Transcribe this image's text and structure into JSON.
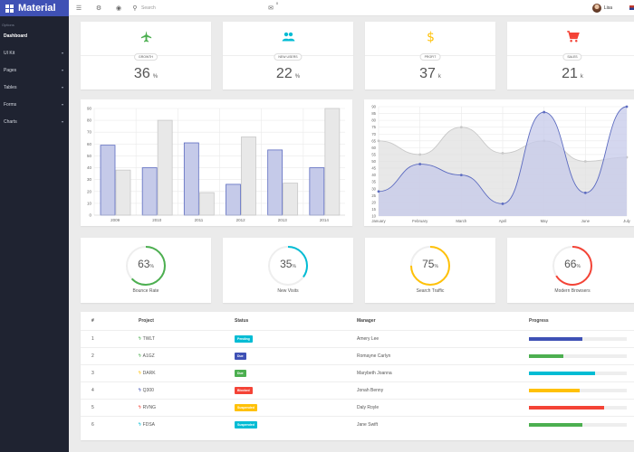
{
  "brand": {
    "title": "Material"
  },
  "sidebar": {
    "section": "Options",
    "items": [
      {
        "label": "Dashboard",
        "active": true,
        "chevron": false
      },
      {
        "label": "UI Kit",
        "chevron": true
      },
      {
        "label": "Pages",
        "chevron": true
      },
      {
        "label": "Tables",
        "chevron": true
      },
      {
        "label": "Forms",
        "chevron": true
      },
      {
        "label": "Charts",
        "chevron": true
      }
    ]
  },
  "topbar": {
    "search_placeholder": "Search",
    "mail_count": "0",
    "user_name": "Lisa"
  },
  "stats": [
    {
      "badge": "GROWTH",
      "value": "36",
      "unit": "%",
      "icon": "airplane-icon",
      "color": "#4caf50"
    },
    {
      "badge": "NEW USERS",
      "value": "22",
      "unit": "%",
      "icon": "users-icon",
      "color": "#00bcd4"
    },
    {
      "badge": "PROFIT",
      "value": "37",
      "unit": "k",
      "icon": "dollar-icon",
      "color": "#ffc107"
    },
    {
      "badge": "SALES",
      "value": "21",
      "unit": "k",
      "icon": "cart-icon",
      "color": "#f44336"
    }
  ],
  "chart_data": [
    {
      "type": "bar",
      "categories": [
        "2009",
        "2010",
        "2011",
        "2012",
        "2013",
        "2014"
      ],
      "series": [
        {
          "values": [
            59,
            40,
            61,
            26,
            55,
            40
          ],
          "color": "#c5cae9",
          "stroke": "#5c6bc0"
        },
        {
          "values": [
            38,
            80,
            19,
            66,
            27,
            90
          ],
          "color": "#e8e8e8",
          "stroke": "#c8c8c8"
        }
      ],
      "ylim": [
        0,
        90
      ],
      "yticks": [
        0,
        10,
        20,
        30,
        40,
        50,
        60,
        70,
        80,
        90
      ],
      "grid": true
    },
    {
      "type": "area",
      "categories": [
        "January",
        "February",
        "March",
        "April",
        "May",
        "June",
        "July"
      ],
      "series": [
        {
          "values": [
            65,
            55,
            75,
            56,
            65,
            50,
            53
          ],
          "color": "#e0e0e0",
          "stroke": "#c9c9c9"
        },
        {
          "values": [
            28,
            48,
            40,
            19,
            86,
            27,
            90
          ],
          "color": "#c5cae9",
          "stroke": "#5c6bc0"
        }
      ],
      "ylim": [
        10,
        90
      ],
      "yticks": [
        10,
        15,
        20,
        25,
        30,
        35,
        40,
        45,
        50,
        55,
        60,
        65,
        70,
        75,
        80,
        85,
        90
      ],
      "grid": true
    }
  ],
  "gauges": [
    {
      "value": "63",
      "fraction": 0.63,
      "label": "Bounce Rate",
      "color": "#4caf50"
    },
    {
      "value": "35",
      "fraction": 0.35,
      "label": "New Visits",
      "color": "#00bcd4"
    },
    {
      "value": "75",
      "fraction": 0.75,
      "label": "Search Traffic",
      "color": "#ffc107"
    },
    {
      "value": "66",
      "fraction": 0.66,
      "label": "Modern Browsers",
      "color": "#f44336"
    }
  ],
  "gauge_unit": "%",
  "table": {
    "headers": [
      "#",
      "Project",
      "Status",
      "Manager",
      "Progress"
    ],
    "rows": [
      {
        "num": "1",
        "project": "TWLT",
        "icon_color": "#4caf50",
        "status": "Pending",
        "status_color": "#00bcd4",
        "manager": "Amery Lee",
        "progress": 0.55,
        "bar_color": "#3f51b5"
      },
      {
        "num": "2",
        "project": "A1GZ",
        "icon_color": "#4caf50",
        "status": "Due",
        "status_color": "#3f51b5",
        "manager": "Romayne Carlyn",
        "progress": 0.35,
        "bar_color": "#4caf50"
      },
      {
        "num": "3",
        "project": "DARK",
        "icon_color": "#ffc107",
        "status": "Due",
        "status_color": "#4caf50",
        "manager": "Marybeth Joanna",
        "progress": 0.68,
        "bar_color": "#00bcd4"
      },
      {
        "num": "4",
        "project": "Q300",
        "icon_color": "#3f51b5",
        "status": "Blocked",
        "status_color": "#f44336",
        "manager": "Jonah Benny",
        "progress": 0.52,
        "bar_color": "#ffc107"
      },
      {
        "num": "5",
        "project": "RVNG",
        "icon_color": "#f44336",
        "status": "Suspended",
        "status_color": "#ffc107",
        "manager": "Daly Royle",
        "progress": 0.77,
        "bar_color": "#f44336"
      },
      {
        "num": "6",
        "project": "FDSA",
        "icon_color": "#00bcd4",
        "status": "Suspended",
        "status_color": "#00bcd4",
        "manager": "Jane Swift",
        "progress": 0.55,
        "bar_color": "#4caf50"
      }
    ]
  }
}
